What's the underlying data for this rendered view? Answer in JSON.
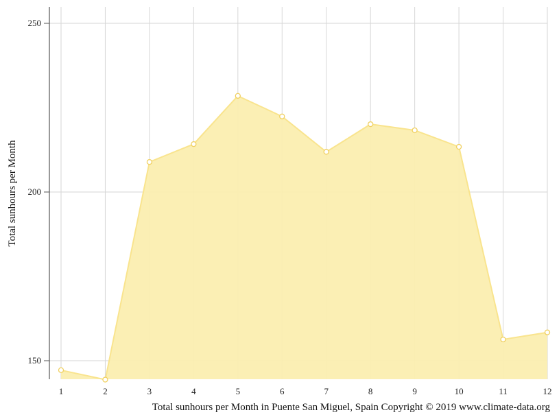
{
  "chart_data": {
    "type": "area",
    "x": [
      1,
      2,
      3,
      4,
      5,
      6,
      7,
      8,
      9,
      10,
      11,
      12
    ],
    "series": [
      {
        "values": [
          147.2,
          144.4,
          208.9,
          214.2,
          228.5,
          222.4,
          211.9,
          220.1,
          218.3,
          213.4,
          156.3,
          158.4
        ]
      }
    ],
    "ylabel": "Total sunhours per Month",
    "caption": "Total sunhours per Month in Puente San Miguel, Spain Copyright © 2019 www.climate-data.org",
    "ylim": [
      144.4,
      255.2
    ],
    "yticks": [
      150,
      200,
      250
    ],
    "grid": true,
    "colors": {
      "fill": "#fbeeb0",
      "line": "#f9e48e",
      "marker_stroke": "#f0d060",
      "grid": "#d6d6d6"
    }
  }
}
